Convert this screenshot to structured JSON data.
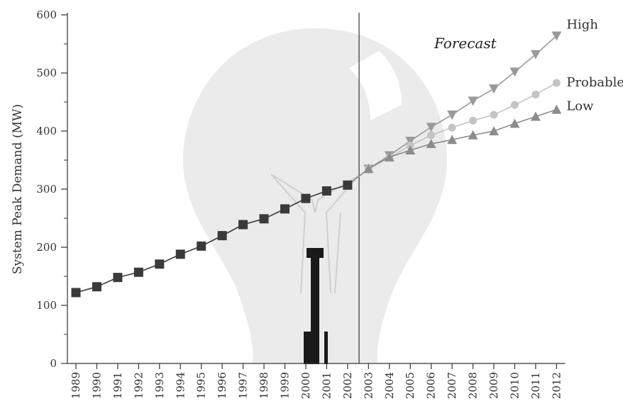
{
  "chart_data": {
    "type": "line",
    "ylabel": "System Peak Demand (MW)",
    "ylim": [
      0,
      600
    ],
    "y_ticks": [
      "0",
      "100",
      "200",
      "300",
      "400",
      "500",
      "600"
    ],
    "x": [
      "1989",
      "1990",
      "1991",
      "1992",
      "1993",
      "1994",
      "1995",
      "1996",
      "1997",
      "1998",
      "1999",
      "2000",
      "2001",
      "2002",
      "2003",
      "2004",
      "2005",
      "2006",
      "2007",
      "2008",
      "2009",
      "2010",
      "2011",
      "2012"
    ],
    "forecast_label": "Forecast",
    "forecast_starts_after": "2002",
    "series": [
      {
        "id": "historical",
        "marker": "square",
        "color": "#3a3a3a",
        "x": [
          "1989",
          "1990",
          "1991",
          "1992",
          "1993",
          "1994",
          "1995",
          "1996",
          "1997",
          "1998",
          "1999",
          "2000",
          "2001",
          "2002"
        ],
        "values": [
          122,
          132,
          148,
          157,
          171,
          188,
          202,
          220,
          239,
          249,
          266,
          284,
          297,
          307
        ]
      },
      {
        "name": "High",
        "marker": "triangle-down",
        "color": "#9a9a9a",
        "x": [
          "2002",
          "2003",
          "2004",
          "2005",
          "2006",
          "2007",
          "2008",
          "2009",
          "2010",
          "2011",
          "2012"
        ],
        "values": [
          307,
          335,
          358,
          383,
          407,
          428,
          452,
          473,
          502,
          532,
          564
        ]
      },
      {
        "name": "Probable",
        "marker": "circle",
        "color": "#c4c4c4",
        "x": [
          "2002",
          "2003",
          "2004",
          "2005",
          "2006",
          "2007",
          "2008",
          "2009",
          "2010",
          "2011",
          "2012"
        ],
        "values": [
          307,
          335,
          355,
          375,
          393,
          406,
          418,
          428,
          445,
          463,
          483
        ]
      },
      {
        "name": "Low",
        "marker": "triangle-up",
        "color": "#8c8c8c",
        "x": [
          "2002",
          "2003",
          "2004",
          "2005",
          "2006",
          "2007",
          "2008",
          "2009",
          "2010",
          "2011",
          "2012"
        ],
        "values": [
          307,
          335,
          355,
          367,
          378,
          385,
          393,
          400,
          413,
          425,
          437
        ]
      }
    ]
  },
  "background_icon": "light-bulb-icon"
}
